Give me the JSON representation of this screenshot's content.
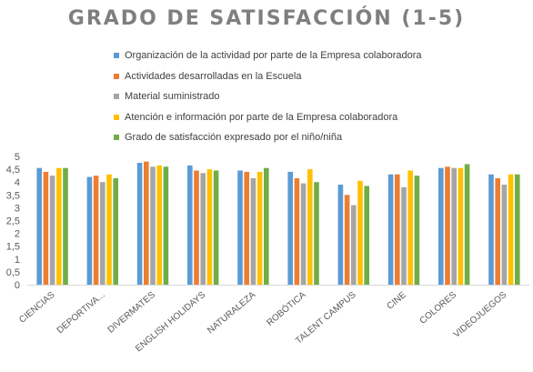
{
  "chart_data": {
    "type": "bar",
    "title": "GRADO DE SATISFACCIÓN (1-5)",
    "xlabel": "",
    "ylabel": "",
    "ylim": [
      0,
      5
    ],
    "yticks": [
      "0",
      "0,5",
      "1",
      "1,5",
      "2",
      "2,5",
      "3",
      "3,5",
      "4",
      "4,5",
      "5"
    ],
    "legend_position": "top",
    "grid": false,
    "categories": [
      "CIENCIAS",
      "DEPORTIVA...",
      "DIVERMATES",
      "ENGLISH HOLIDAYS",
      "NATURALEZA",
      "ROBÓTICA",
      "TALENT CAMPUS",
      "CINE",
      "COLORES",
      "VIDEOJUEGOS"
    ],
    "series": [
      {
        "name": "Organización de la actividad por parte de la Empresa colaboradora",
        "color": "#5b9bd5",
        "values": [
          4.55,
          4.2,
          4.75,
          4.65,
          4.45,
          4.4,
          3.9,
          4.3,
          4.55,
          4.3
        ]
      },
      {
        "name": "Actividades desarrolladas en la Escuela",
        "color": "#ed7d31",
        "values": [
          4.4,
          4.25,
          4.8,
          4.45,
          4.4,
          4.15,
          3.5,
          4.3,
          4.6,
          4.15
        ]
      },
      {
        "name": "Material suministrado",
        "color": "#a5a5a5",
        "values": [
          4.25,
          4.0,
          4.6,
          4.35,
          4.15,
          3.95,
          3.1,
          3.8,
          4.55,
          3.9
        ]
      },
      {
        "name": "Atención e información por parte de la Empresa colaboradora",
        "color": "#ffc000",
        "values": [
          4.55,
          4.3,
          4.65,
          4.5,
          4.4,
          4.5,
          4.05,
          4.45,
          4.55,
          4.3
        ]
      },
      {
        "name": "Grado de satisfacción expresado por el niño/niña",
        "color": "#70ad47",
        "values": [
          4.55,
          4.15,
          4.6,
          4.45,
          4.55,
          4.0,
          3.85,
          4.25,
          4.7,
          4.3
        ]
      }
    ]
  }
}
